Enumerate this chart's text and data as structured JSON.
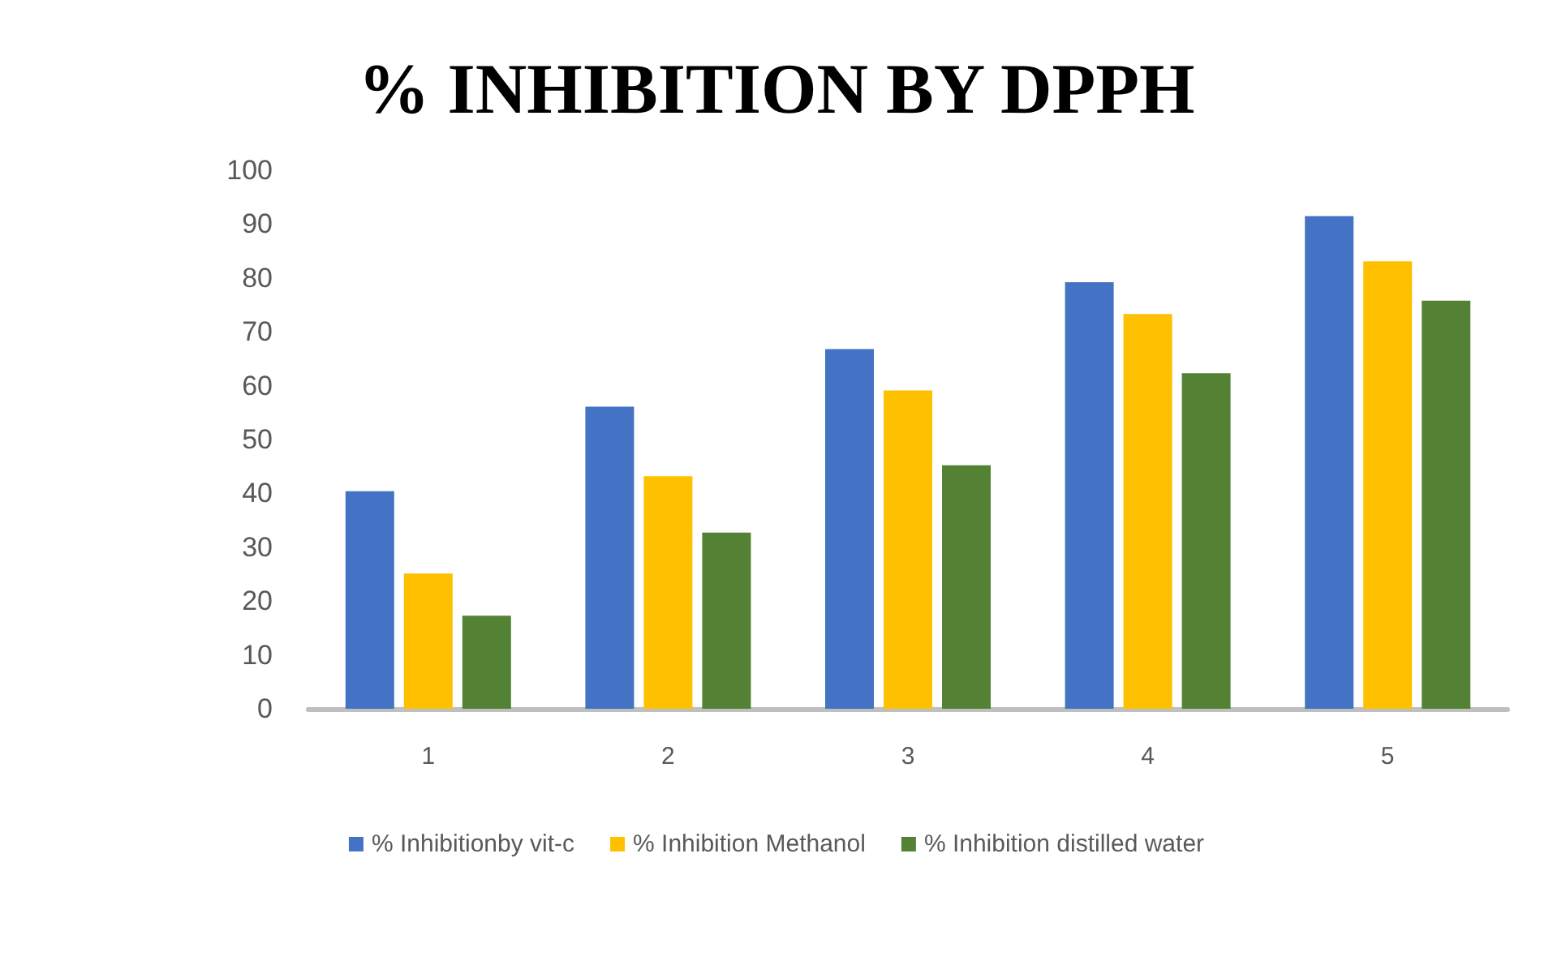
{
  "chart_data": {
    "type": "bar",
    "title": "% INHIBITION BY DPPH",
    "categories": [
      "1",
      "2",
      "3",
      "4",
      "5"
    ],
    "series": [
      {
        "name": "% Inhibitionby vit-c",
        "color": "#4472c4",
        "values": [
          40.4,
          56.1,
          66.8,
          79.2,
          91.5
        ]
      },
      {
        "name": "% Inhibition Methanol",
        "color": "#ffc000",
        "values": [
          25.1,
          43.2,
          59.1,
          73.3,
          83.1
        ]
      },
      {
        "name": "% Inhibition distilled water",
        "color": "#548235",
        "values": [
          17.3,
          32.7,
          45.2,
          62.3,
          75.8
        ]
      }
    ],
    "ylim": [
      0,
      100
    ],
    "yticks": [
      0,
      10,
      20,
      30,
      40,
      50,
      60,
      70,
      80,
      90,
      100
    ],
    "grid": false,
    "legend": "bottom"
  }
}
